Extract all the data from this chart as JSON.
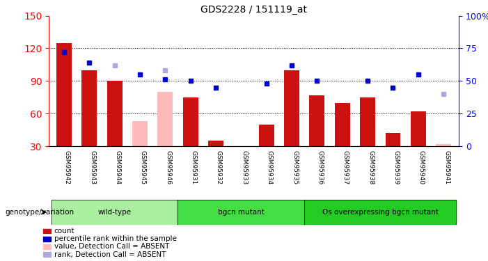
{
  "title": "GDS2228 / 151119_at",
  "samples": [
    "GSM95942",
    "GSM95943",
    "GSM95944",
    "GSM95945",
    "GSM95946",
    "GSM95931",
    "GSM95932",
    "GSM95933",
    "GSM95934",
    "GSM95935",
    "GSM95936",
    "GSM95937",
    "GSM95938",
    "GSM95939",
    "GSM95940",
    "GSM95941"
  ],
  "groups": [
    {
      "name": "wild-type",
      "indices": [
        0,
        1,
        2,
        3,
        4
      ],
      "color": "#aaeea0"
    },
    {
      "name": "bgcn mutant",
      "indices": [
        5,
        6,
        7,
        8,
        9
      ],
      "color": "#44dd44"
    },
    {
      "name": "Os overexpressing bgcn mutant",
      "indices": [
        10,
        11,
        12,
        13,
        14,
        15
      ],
      "color": "#22cc22"
    }
  ],
  "bar_values": [
    125,
    100,
    90,
    null,
    null,
    75,
    35,
    null,
    50,
    100,
    77,
    70,
    75,
    42,
    62,
    null
  ],
  "bar_absent": [
    null,
    null,
    null,
    53,
    80,
    null,
    null,
    null,
    null,
    null,
    null,
    null,
    null,
    null,
    null,
    32
  ],
  "dot_values_pct": [
    72,
    64,
    null,
    55,
    51,
    50,
    45,
    null,
    48,
    62,
    50,
    null,
    50,
    45,
    55,
    null
  ],
  "dot_absent_pct": [
    null,
    null,
    62,
    null,
    58,
    null,
    null,
    null,
    null,
    null,
    null,
    null,
    null,
    null,
    null,
    40
  ],
  "left_ylim": [
    30,
    150
  ],
  "right_ylim": [
    0,
    100
  ],
  "left_yticks": [
    30,
    60,
    90,
    120,
    150
  ],
  "right_yticks": [
    0,
    25,
    50,
    75,
    100
  ],
  "right_yticklabels": [
    "0",
    "25",
    "50",
    "75",
    "100%"
  ],
  "bar_color": "#cc1111",
  "bar_absent_color": "#ffbbbb",
  "dot_color": "#0000cc",
  "dot_absent_color": "#aaaadd",
  "bg_color": "#d8d8d8",
  "plot_bg": "#ffffff",
  "legend_items": [
    {
      "label": "count",
      "color": "#cc1111"
    },
    {
      "label": "percentile rank within the sample",
      "color": "#0000cc"
    },
    {
      "label": "value, Detection Call = ABSENT",
      "color": "#ffbbbb"
    },
    {
      "label": "rank, Detection Call = ABSENT",
      "color": "#aaaadd"
    }
  ],
  "genotype_label": "genotype/variation"
}
